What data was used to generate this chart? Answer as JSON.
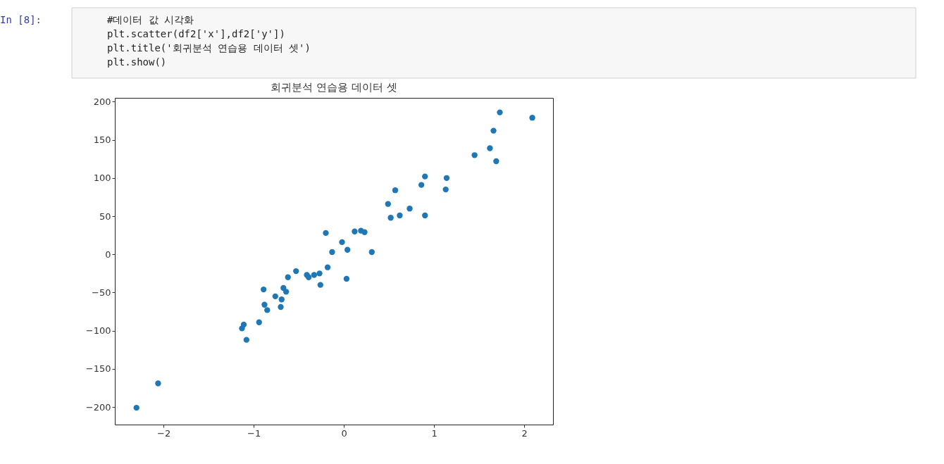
{
  "chart_data": {
    "type": "scatter",
    "title": "회귀분석 연습용 데이터 셋",
    "annotations": [
      "In [8]:",
      "#데이터 값 시각화",
      "plt.scatter(df2['x'],df2['y'])",
      "plt.title('회귀분석 연습용 데이터 셋')",
      "plt.show()"
    ],
    "x": [
      -2.3,
      -2.06,
      -1.11,
      -1.13,
      -1.08,
      -0.94,
      -0.89,
      -0.88,
      -0.85,
      -0.76,
      -0.69,
      -0.7,
      -0.67,
      -0.64,
      -0.62,
      -0.53,
      -0.41,
      -0.39,
      -0.33,
      -0.27,
      -0.26,
      -0.18,
      -0.13,
      0.04,
      0.03,
      -0.2,
      -0.02,
      0.12,
      0.19,
      0.23,
      0.31,
      0.49,
      0.52,
      0.57,
      0.62,
      0.73,
      0.86,
      0.9,
      0.9,
      1.14,
      1.13,
      1.45,
      1.62,
      1.69,
      1.66,
      1.73,
      2.09
    ],
    "series": [
      {
        "color": "#1f77b4",
        "values": [
          -201,
          -169,
          -92,
          -97,
          -112,
          -89,
          -46,
          -66,
          -73,
          -55,
          -59,
          -69,
          -44,
          -49,
          -30,
          -22,
          -27,
          -30,
          -27,
          -25,
          -40,
          -17,
          3,
          6,
          -32,
          28,
          16,
          30,
          31,
          29,
          3,
          66,
          48,
          84,
          51,
          60,
          91,
          102,
          51,
          100,
          85,
          130,
          139,
          122,
          162,
          186,
          179
        ]
      }
    ],
    "xlim": [
      -2.54,
      2.32
    ],
    "ylim": [
      -223,
      205
    ],
    "xticks": [
      -2,
      -1,
      0,
      1,
      2
    ],
    "yticks": [
      -200,
      -150,
      -100,
      -50,
      0,
      50,
      100,
      150,
      200
    ],
    "grid": false,
    "marker": "circle"
  }
}
